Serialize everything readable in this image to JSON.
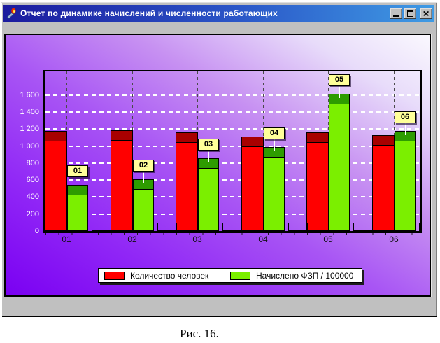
{
  "window": {
    "title": "Отчет по динамике начислений и численности работающих",
    "close_glyph": "×"
  },
  "figure_caption": "Рис. 16.",
  "colors": {
    "titlebar_left": "#1b1b9e",
    "titlebar_right": "#3f9be4",
    "chrome": "#c0c0c0",
    "panel_gradient_dark": "#7a00f2",
    "panel_gradient_light": "#faf8fe",
    "grid_horizontal": "#ffffff",
    "grid_vertical": "#4a4a4a",
    "y_axis_text": "#ffffff",
    "x_axis_text": "#101010",
    "point_label_fill": "#ffff99"
  },
  "chart_data": {
    "type": "bar",
    "title": "",
    "xlabel": "",
    "ylabel": "",
    "categories": [
      "01",
      "02",
      "03",
      "04",
      "05",
      "06"
    ],
    "series": [
      {
        "name": "Количество человек",
        "color": "#ff0000",
        "cap_color": "#a80000",
        "in_legend": true,
        "values": [
          1180,
          1190,
          1160,
          1115,
          1160,
          1130
        ]
      },
      {
        "name": "Начислено ФЗП / 100000",
        "color": "#7bef00",
        "cap_color": "#2e9c00",
        "in_legend": true,
        "values": [
          545,
          610,
          855,
          990,
          1620,
          1180
        ]
      },
      {
        "name": "",
        "color": "transparent",
        "cap_color": "transparent",
        "in_legend": false,
        "values": [
          100,
          100,
          100,
          100,
          100,
          100
        ]
      }
    ],
    "point_labels": {
      "series_index": 1,
      "labels": [
        "01",
        "02",
        "03",
        "04",
        "05",
        "06"
      ]
    },
    "y_ticks": [
      "0",
      "200",
      "400",
      "600",
      "800",
      "1 000",
      "1 200",
      "1 400",
      "1 600"
    ],
    "y_tick_values": [
      0,
      200,
      400,
      600,
      800,
      1000,
      1200,
      1400,
      1600
    ],
    "ylim": [
      0,
      1890
    ],
    "grid": {
      "horizontal": "white dashed",
      "vertical": "gray dashed"
    },
    "legend_position": "bottom"
  }
}
